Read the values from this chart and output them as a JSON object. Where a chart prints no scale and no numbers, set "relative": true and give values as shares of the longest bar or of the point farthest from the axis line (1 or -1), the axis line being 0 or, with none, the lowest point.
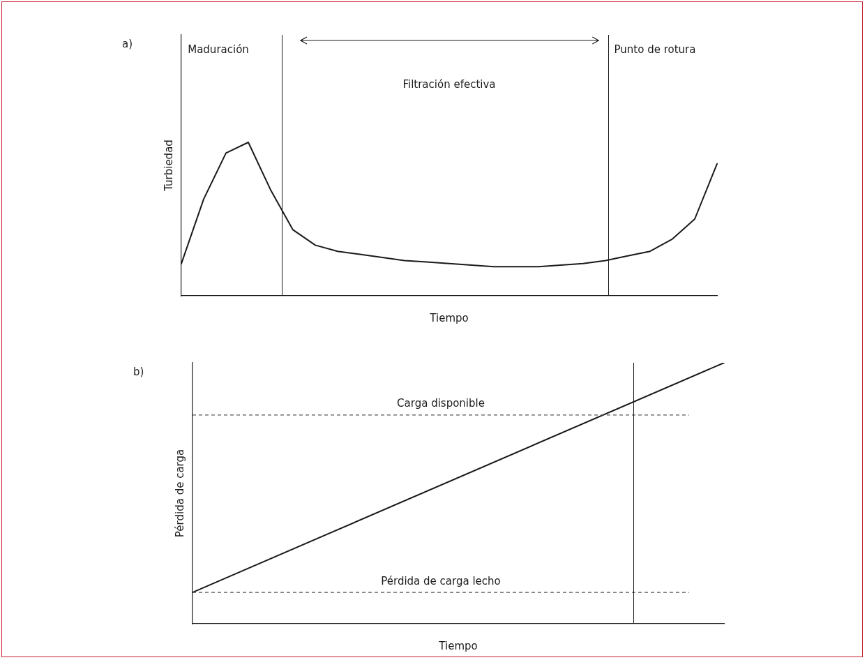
{
  "chart_data": [
    {
      "type": "line",
      "title": "a)",
      "xlabel": "Tiempo",
      "ylabel": "Turbiedad",
      "relative": true,
      "tick_labels": false,
      "grid": false,
      "legend": false,
      "marker": "none",
      "line_style": "solid",
      "categories": [
        null,
        null,
        null,
        null,
        null,
        null,
        null,
        null,
        null,
        null,
        null,
        null,
        null,
        null,
        null,
        null,
        null,
        null,
        null,
        null,
        null,
        null,
        null,
        null,
        null
      ],
      "series": [
        {
          "color": "#1a1a1a",
          "values": [
            0.21,
            0.63,
            0.93,
            1.0,
            0.69,
            0.43,
            0.33,
            0.29,
            0.27,
            0.25,
            0.23,
            0.22,
            0.21,
            0.2,
            0.19,
            0.19,
            0.19,
            0.2,
            0.21,
            0.23,
            0.26,
            0.29,
            0.37,
            0.5,
            0.86
          ]
        }
      ],
      "annotations": [
        "Maduración",
        "Filtración efectiva",
        "Punto de rotura"
      ]
    },
    {
      "type": "line",
      "title": "b)",
      "xlabel": "Tiempo",
      "ylabel": "Pérdida de carga",
      "relative": true,
      "tick_labels": false,
      "grid": false,
      "legend": false,
      "marker": "none",
      "line_style": "solid",
      "categories": [
        null,
        null
      ],
      "series": [
        {
          "color": "#1a1a1a",
          "values": [
            0.12,
            1.0
          ]
        }
      ],
      "ref_lines": [
        {
          "axis": "y",
          "value": 0.8,
          "label": "Carga disponible",
          "color": "#555555",
          "line_style": "dashed"
        },
        {
          "axis": "y",
          "value": 0.12,
          "label": "Pérdida de carga lecho",
          "color": "#555555",
          "line_style": "dashed"
        }
      ]
    }
  ]
}
